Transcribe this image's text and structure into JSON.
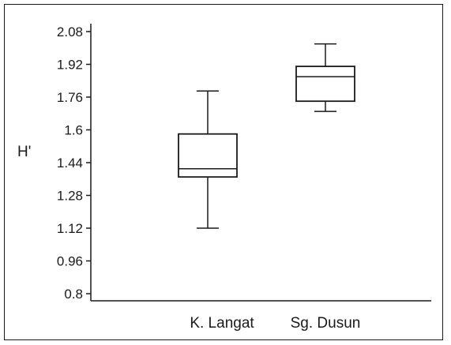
{
  "chart_data": {
    "type": "box",
    "title": "",
    "xlabel": "",
    "ylabel": "H'",
    "ylim": [
      0.8,
      2.08
    ],
    "yticks": [
      {
        "value": 2.08,
        "label": "2.08"
      },
      {
        "value": 1.92,
        "label": "1.92"
      },
      {
        "value": 1.76,
        "label": "1.76"
      },
      {
        "value": 1.6,
        "label": "1.6"
      },
      {
        "value": 1.44,
        "label": "1.44"
      },
      {
        "value": 1.28,
        "label": "1.28"
      },
      {
        "value": 1.12,
        "label": "1.12"
      },
      {
        "value": 0.96,
        "label": "0.96"
      },
      {
        "value": 0.8,
        "label": "0.8"
      }
    ],
    "categories": [
      "K. Langat",
      "Sg. Dusun"
    ],
    "boxes": [
      {
        "category": "K. Langat",
        "min": 1.12,
        "q1": 1.37,
        "median": 1.41,
        "q3": 1.58,
        "max": 1.79
      },
      {
        "category": "Sg. Dusun",
        "min": 1.69,
        "q1": 1.74,
        "median": 1.86,
        "q3": 1.91,
        "max": 2.02
      }
    ],
    "grid": false,
    "colors": {
      "line": "#1a1a1a",
      "fill": "#ffffff"
    }
  }
}
